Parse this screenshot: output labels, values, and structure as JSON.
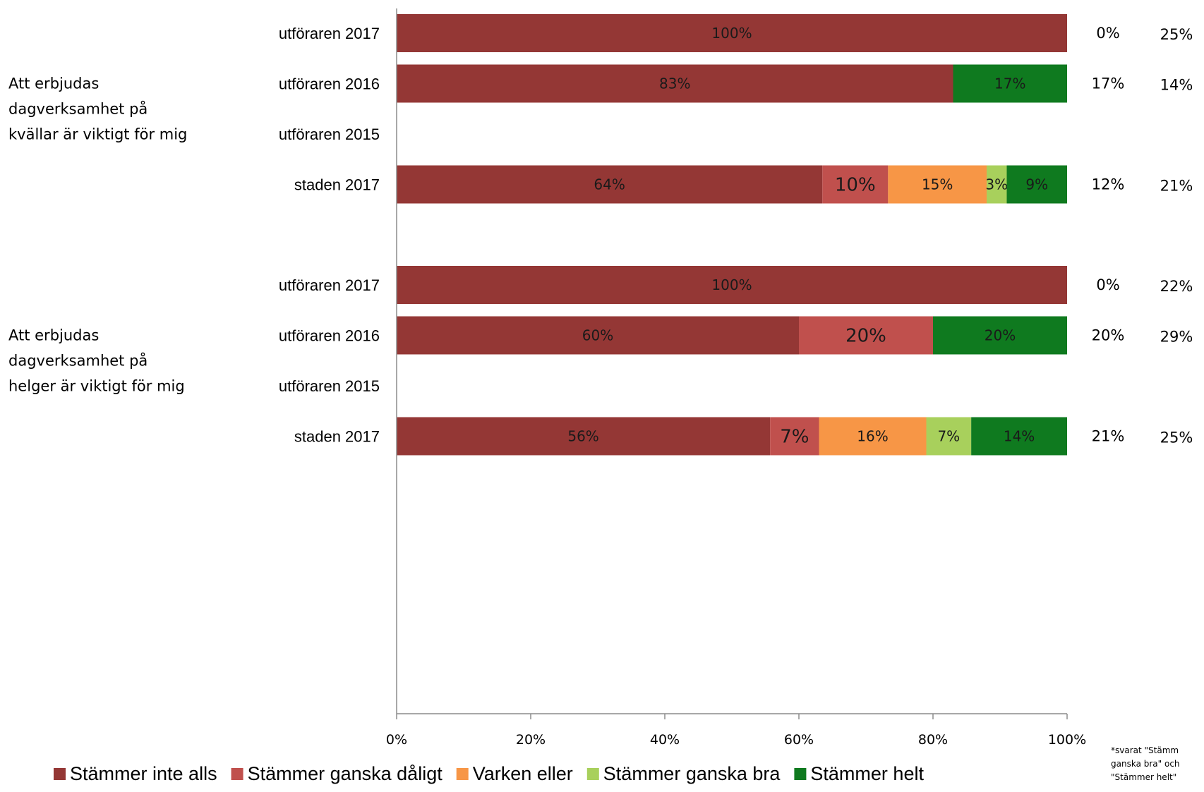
{
  "chart_data": {
    "type": "bar",
    "orientation": "horizontal-stacked-100",
    "xlim": [
      0,
      100
    ],
    "x_tick_labels": [
      "0%",
      "20%",
      "40%",
      "60%",
      "80%",
      "100%"
    ],
    "series": [
      {
        "name": "Stämmer inte alls",
        "color": "#943735"
      },
      {
        "name": "Stämmer ganska dåligt",
        "color": "#c0504d"
      },
      {
        "name": "Varken eller",
        "color": "#f79646"
      },
      {
        "name": "Stämmer ganska bra",
        "color": "#a8d05c"
      },
      {
        "name": "Stämmer helt",
        "color": "#0f7a1f"
      }
    ],
    "groups": [
      {
        "label": "Att erbjudas dagverksamhet på kvällar är viktigt för mig",
        "label_lines": [
          "Att erbjudas",
          "dagverksamhet på",
          "kvällar är viktigt för mig"
        ],
        "rows": [
          {
            "category": "utföraren 2017",
            "values": [
              100,
              0,
              0,
              0,
              0
            ],
            "labels": [
              "100%",
              "",
              "",
              "",
              ""
            ],
            "side_1": "0%",
            "side_2": "25%"
          },
          {
            "category": "utföraren 2016",
            "values": [
              83,
              0,
              0,
              0,
              17
            ],
            "labels": [
              "83%",
              "",
              "",
              "",
              "17%"
            ],
            "side_1": "17%",
            "side_2": "14%"
          },
          {
            "category": "utföraren 2015",
            "values": [
              0,
              0,
              0,
              0,
              0
            ],
            "labels": [
              "",
              "",
              "",
              "",
              ""
            ],
            "side_1": "",
            "side_2": ""
          },
          {
            "category": "staden 2017",
            "values": [
              63.5,
              9.8,
              14.7,
              3,
              9
            ],
            "labels": [
              "64%",
              "10%",
              "15%",
              "3%",
              "9%"
            ],
            "side_1": "12%",
            "side_2": "21%"
          }
        ]
      },
      {
        "label": "Att erbjudas dagverksamhet på helger är viktigt för mig",
        "label_lines": [
          "Att erbjudas",
          "dagverksamhet på",
          "helger är viktigt för mig"
        ],
        "rows": [
          {
            "category": "utföraren 2017",
            "values": [
              100,
              0,
              0,
              0,
              0
            ],
            "labels": [
              "100%",
              "",
              "",
              "",
              ""
            ],
            "side_1": "0%",
            "side_2": "22%"
          },
          {
            "category": "utföraren 2016",
            "values": [
              60,
              20,
              0,
              0,
              20
            ],
            "labels": [
              "60%",
              "20%",
              "",
              "",
              "20%"
            ],
            "side_1": "20%",
            "side_2": "29%"
          },
          {
            "category": "utföraren 2015",
            "values": [
              0,
              0,
              0,
              0,
              0
            ],
            "labels": [
              "",
              "",
              "",
              "",
              ""
            ],
            "side_1": "",
            "side_2": ""
          },
          {
            "category": "staden 2017",
            "values": [
              55.7,
              7.3,
              16,
              6.7,
              14.3
            ],
            "labels": [
              "56%",
              "7%",
              "16%",
              "7%",
              "14%"
            ],
            "side_1": "21%",
            "side_2": "25%"
          }
        ]
      }
    ],
    "legend_placement": "bottom",
    "grid": false
  },
  "footnote_lines": [
    "*svarat \"Stämm",
    "ganska bra\" och",
    "\"Stämmer helt\""
  ]
}
